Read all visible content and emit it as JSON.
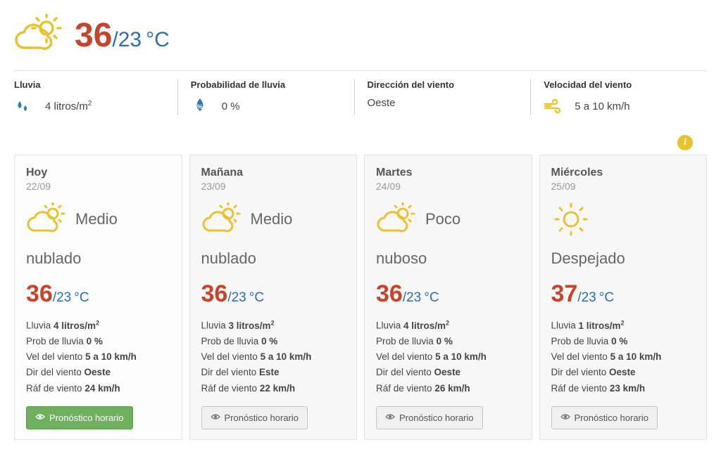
{
  "colors": {
    "hi": "#c7432a",
    "lo": "#2a6db3",
    "icon_yellow": "#e9c22e",
    "icon_blue": "#2a7ab8",
    "card_bg": "#f7f7f7",
    "card_border": "#e3e3e3",
    "btn_green_bg": "#6fb05c"
  },
  "current": {
    "temp_hi": "36",
    "temp_lo": "/23",
    "temp_unit": "°C",
    "stats": [
      {
        "label": "Lluvia",
        "icon": "drops",
        "value": "4 litros/m²"
      },
      {
        "label": "Probabilidad de lluvia",
        "icon": "drop-pct",
        "value": "0 %"
      },
      {
        "label": "Dirección del viento",
        "icon": "",
        "value": "Oeste"
      },
      {
        "label": "Velocidad del viento",
        "icon": "wind",
        "value": "5 a 10 km/h"
      }
    ]
  },
  "forecast": [
    {
      "day": "Hoy",
      "date": "22/09",
      "icon": "partly",
      "cond_top": "Medio",
      "cond_bottom": "nublado",
      "hi": "36",
      "lo": "/23",
      "unit": "°C",
      "rain_label": "Lluvia",
      "rain_val": "4 litros/m²",
      "prob_label": "Prob de lluvia",
      "prob_val": "0 %",
      "windv_label": "Vel del viento",
      "windv_val": "5 a 10 km/h",
      "windd_label": "Dir del viento",
      "windd_val": "Oeste",
      "gust_label": "Ráf de viento",
      "gust_val": "24 km/h",
      "btn": "Pronóstico horario",
      "btn_style": "green"
    },
    {
      "day": "Mañana",
      "date": "23/09",
      "icon": "partly",
      "cond_top": "Medio",
      "cond_bottom": "nublado",
      "hi": "36",
      "lo": "/23",
      "unit": "°C",
      "rain_label": "Lluvia",
      "rain_val": "3 litros/m²",
      "prob_label": "Prob de lluvia",
      "prob_val": "0 %",
      "windv_label": "Vel del viento",
      "windv_val": "5 a 10 km/h",
      "windd_label": "Dir del viento",
      "windd_val": "Este",
      "gust_label": "Ráf de viento",
      "gust_val": "22 km/h",
      "btn": "Pronóstico horario",
      "btn_style": "gray"
    },
    {
      "day": "Martes",
      "date": "24/09",
      "icon": "partly",
      "cond_top": "Poco",
      "cond_bottom": "nuboso",
      "hi": "36",
      "lo": "/23",
      "unit": "°C",
      "rain_label": "Lluvia",
      "rain_val": "4 litros/m²",
      "prob_label": "Prob de lluvia",
      "prob_val": "0 %",
      "windv_label": "Vel del viento",
      "windv_val": "5 a 10 km/h",
      "windd_label": "Dir del viento",
      "windd_val": "Oeste",
      "gust_label": "Ráf de viento",
      "gust_val": "26 km/h",
      "btn": "Pronóstico horario",
      "btn_style": "gray"
    },
    {
      "day": "Miércoles",
      "date": "25/09",
      "icon": "sunny",
      "cond_top": "",
      "cond_bottom": "Despejado",
      "hi": "37",
      "lo": "/23",
      "unit": "°C",
      "rain_label": "Lluvia",
      "rain_val": "1 litros/m²",
      "prob_label": "Prob de lluvia",
      "prob_val": "0 %",
      "windv_label": "Vel del viento",
      "windv_val": "5 a 10 km/h",
      "windd_label": "Dir del viento",
      "windd_val": "Oeste",
      "gust_label": "Ráf de viento",
      "gust_val": "23 km/h",
      "btn": "Pronóstico horario",
      "btn_style": "gray"
    }
  ]
}
